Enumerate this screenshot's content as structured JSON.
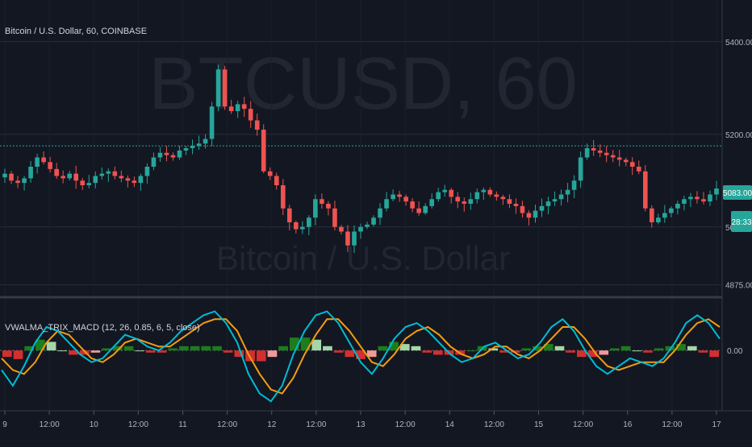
{
  "header": {
    "symbol_title": "Bitcoin / U.S. Dollar, 60, COINBASE"
  },
  "watermark": {
    "ticker": "BTCUSD, 60",
    "name": "Bitcoin / U.S. Dollar"
  },
  "indicator": {
    "title": "VWALMA_TRIX_MACD (12, 26, 0.85, 6, 5, close)"
  },
  "colors": {
    "background": "#131722",
    "grid": "#2a2e39",
    "up": "#26a69a",
    "down": "#ef5350",
    "level_line": "#26a69a",
    "macd": "#00bcd4",
    "signal": "#f39c12",
    "hist_up_strong": "#1b7d1b",
    "hist_up_weak": "#a5d6a7",
    "hist_down_strong": "#d32f2f",
    "hist_down_weak": "#ef9a9a",
    "axis_text": "#b2b5be"
  },
  "chart_data": [
    {
      "type": "candlestick",
      "title": "Bitcoin / U.S. Dollar, 60, COINBASE",
      "y_ticks": [
        "5400.00",
        "5200.00",
        "5000.00",
        "4875.00"
      ],
      "ylim": [
        4850,
        5490
      ],
      "horizontal_level": 5175,
      "last_price_label": "5083.00",
      "countdown_label": "28:33",
      "x_ticks": [
        "9",
        "12:00",
        "10",
        "12:00",
        "11",
        "12:00",
        "12",
        "12:00",
        "13",
        "12:00",
        "14",
        "12:00",
        "15",
        "12:00",
        "16",
        "12:00",
        "17"
      ],
      "close_series": [
        5115,
        5100,
        5095,
        5105,
        5130,
        5150,
        5140,
        5125,
        5110,
        5105,
        5115,
        5100,
        5090,
        5095,
        5110,
        5115,
        5120,
        5110,
        5105,
        5100,
        5095,
        5110,
        5130,
        5150,
        5160,
        5155,
        5150,
        5165,
        5170,
        5175,
        5180,
        5190,
        5260,
        5340,
        5260,
        5250,
        5265,
        5255,
        5230,
        5210,
        5120,
        5110,
        5090,
        5040,
        5010,
        4995,
        5000,
        5020,
        5060,
        5050,
        5040,
        5000,
        4990,
        4960,
        4990,
        5000,
        5005,
        5020,
        5040,
        5060,
        5070,
        5065,
        5055,
        5040,
        5030,
        5045,
        5060,
        5075,
        5080,
        5065,
        5055,
        5050,
        5060,
        5075,
        5080,
        5070,
        5065,
        5060,
        5050,
        5045,
        5030,
        5020,
        5035,
        5045,
        5055,
        5060,
        5070,
        5080,
        5100,
        5150,
        5170,
        5165,
        5160,
        5155,
        5150,
        5145,
        5140,
        5130,
        5120,
        5040,
        5010,
        5020,
        5030,
        5040,
        5050,
        5060,
        5065,
        5060,
        5055,
        5070,
        5083
      ]
    },
    {
      "type": "line",
      "title": "VWALMA_TRIX_MACD (12, 26, 0.85, 6, 5, close)",
      "y_ticks": [
        "0.00"
      ],
      "series": [
        {
          "values": [
            -0.5,
            -0.9,
            -0.4,
            0.2,
            0.6,
            0.5,
            0.2,
            -0.1,
            -0.3,
            -0.2,
            0.1,
            0.4,
            0.3,
            0.1,
            0.0,
            0.2,
            0.5,
            0.7,
            0.9,
            1.0,
            0.7,
            0.2,
            -0.6,
            -1.1,
            -1.3,
            -0.9,
            -0.1,
            0.5,
            0.9,
            1.0,
            0.7,
            0.2,
            -0.3,
            -0.6,
            -0.2,
            0.3,
            0.6,
            0.7,
            0.5,
            0.2,
            -0.1,
            -0.3,
            -0.2,
            0.1,
            0.2,
            0.0,
            -0.2,
            -0.1,
            0.2,
            0.6,
            0.8,
            0.5,
            0.0,
            -0.4,
            -0.6,
            -0.4,
            -0.2,
            -0.3,
            -0.4,
            -0.2,
            0.2,
            0.7,
            0.9,
            0.7,
            0.3
          ]
        },
        {
          "values": [
            -0.2,
            -0.5,
            -0.6,
            -0.3,
            0.2,
            0.5,
            0.4,
            0.1,
            -0.2,
            -0.3,
            -0.1,
            0.2,
            0.3,
            0.2,
            0.1,
            0.1,
            0.3,
            0.5,
            0.7,
            0.8,
            0.8,
            0.5,
            -0.1,
            -0.6,
            -1.0,
            -1.1,
            -0.7,
            -0.1,
            0.4,
            0.8,
            0.8,
            0.5,
            0.1,
            -0.3,
            -0.4,
            -0.1,
            0.3,
            0.5,
            0.6,
            0.4,
            0.1,
            -0.1,
            -0.2,
            -0.1,
            0.1,
            0.1,
            -0.1,
            -0.2,
            0.0,
            0.3,
            0.6,
            0.6,
            0.3,
            -0.1,
            -0.4,
            -0.5,
            -0.4,
            -0.3,
            -0.3,
            -0.3,
            0.0,
            0.4,
            0.7,
            0.8,
            0.6
          ]
        }
      ],
      "histogram": [
        -0.3,
        -0.4,
        0.2,
        0.5,
        0.4,
        0.0,
        -0.2,
        -0.2,
        -0.1,
        0.1,
        0.2,
        0.2,
        0.0,
        -0.1,
        -0.1,
        0.1,
        0.2,
        0.2,
        0.2,
        0.2,
        -0.1,
        -0.3,
        -0.5,
        -0.5,
        -0.3,
        0.2,
        0.6,
        0.6,
        0.5,
        0.2,
        -0.1,
        -0.3,
        -0.4,
        -0.3,
        0.2,
        0.4,
        0.3,
        0.2,
        -0.1,
        -0.2,
        -0.2,
        -0.2,
        0.0,
        0.2,
        0.1,
        -0.1,
        -0.1,
        0.1,
        0.2,
        0.3,
        0.2,
        -0.1,
        -0.3,
        -0.3,
        -0.2,
        0.1,
        0.2,
        0.0,
        -0.1,
        0.1,
        0.2,
        0.3,
        0.2,
        -0.1,
        -0.3
      ]
    }
  ]
}
